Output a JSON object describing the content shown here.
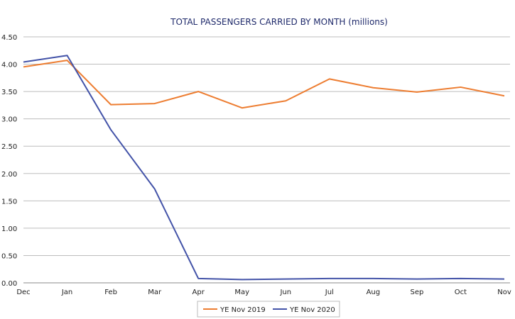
{
  "chart_data": {
    "type": "line",
    "title": "TOTAL PASSENGERS CARRIED BY MONTH (millions)",
    "xlabel": "",
    "ylabel": "",
    "categories": [
      "Dec",
      "Jan",
      "Feb",
      "Mar",
      "Apr",
      "May",
      "Jun",
      "Jul",
      "Aug",
      "Sep",
      "Oct",
      "Nov"
    ],
    "ylim": [
      0,
      4.5
    ],
    "yticks": [
      "0.00",
      "0.50",
      "1.00",
      "1.50",
      "2.00",
      "2.50",
      "3.00",
      "3.50",
      "4.00",
      "4.50"
    ],
    "grid": true,
    "legend_position": "bottom",
    "series": [
      {
        "name": "YE Nov 2019",
        "color": "#ed7d31",
        "values": [
          3.95,
          4.07,
          3.26,
          3.28,
          3.5,
          3.2,
          3.33,
          3.73,
          3.57,
          3.49,
          3.58,
          3.42
        ]
      },
      {
        "name": "YE Nov 2020",
        "color": "#4353a8",
        "values": [
          4.04,
          4.16,
          2.8,
          1.72,
          0.08,
          0.06,
          0.07,
          0.08,
          0.08,
          0.07,
          0.08,
          0.07
        ]
      }
    ]
  }
}
